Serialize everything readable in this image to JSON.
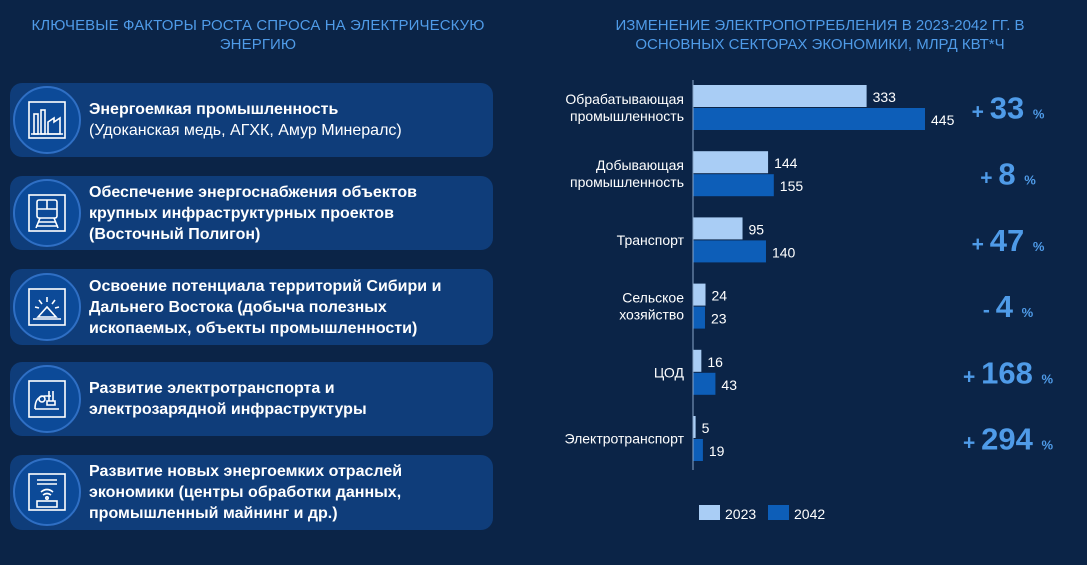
{
  "left_title": "КЛЮЧЕВЫЕ ФАКТОРЫ РОСТА СПРОСА НА ЭЛЕКТРИЧЕСКУЮ ЭНЕРГИЮ",
  "right_title": "ИЗМЕНЕНИЕ ЭЛЕКТРОПОТРЕБЛЕНИЯ В 2023-2042 ГГ. В ОСНОВНЫХ СЕКТОРАХ ЭКОНОМИКИ, МЛРД КВТ*Ч",
  "cards": [
    {
      "icon": "factory-icon",
      "bold": "Энергоемкая промышленность",
      "normal": "(Удоканская медь, АГХК, Амур Минералс)"
    },
    {
      "icon": "train-icon",
      "bold": "Обеспечение энергоснабжения объектов крупных инфраструктурных проектов (Восточный Полигон)",
      "normal": ""
    },
    {
      "icon": "mining-icon",
      "bold": "Освоение потенциала территорий Сибири и Дальнего Востока (добыча полезных ископаемых, объекты промышленности)",
      "normal": ""
    },
    {
      "icon": "ev-icon",
      "bold": "Развитие электротранспорта и электрозарядной инфраструктуры",
      "normal": ""
    },
    {
      "icon": "data-center-icon",
      "bold": "Развитие новых энергоемких отраслей экономики (центры обработки данных, промышленный майнинг и др.)",
      "normal": ""
    }
  ],
  "chart_data": {
    "type": "bar",
    "orientation": "horizontal",
    "title": "ИЗМЕНЕНИЕ ЭЛЕКТРОПОТРЕБЛЕНИЯ В 2023-2042 ГГ. В ОСНОВНЫХ СЕКТОРАХ ЭКОНОМИКИ, МЛРД КВТ*Ч",
    "categories": [
      [
        "Обрабатывающая",
        "промышленность"
      ],
      [
        "Добывающая",
        "промышленность"
      ],
      [
        "Транспорт"
      ],
      [
        "Сельское",
        "хозяйство"
      ],
      [
        "ЦОД"
      ],
      [
        "Электротранспорт"
      ]
    ],
    "series": [
      {
        "name": "2023",
        "color": "#a9cdf5",
        "values": [
          333,
          144,
          95,
          24,
          16,
          5
        ]
      },
      {
        "name": "2042",
        "color": "#0d5eb8",
        "values": [
          445,
          155,
          140,
          23,
          43,
          19
        ]
      }
    ],
    "growth": [
      {
        "sign": "+",
        "value": "33",
        "unit": "%"
      },
      {
        "sign": "+",
        "value": "8",
        "unit": "%"
      },
      {
        "sign": "+",
        "value": "47",
        "unit": "%"
      },
      {
        "sign": "-",
        "value": "4",
        "unit": "%"
      },
      {
        "sign": "+",
        "value": "168",
        "unit": "%"
      },
      {
        "sign": "+",
        "value": "294",
        "unit": "%"
      }
    ],
    "xlim": [
      0,
      445
    ],
    "legend": "bottom"
  },
  "colors": {
    "background": "#0b2447",
    "card": "#0f3d7a",
    "accent": "#4f9be8"
  }
}
